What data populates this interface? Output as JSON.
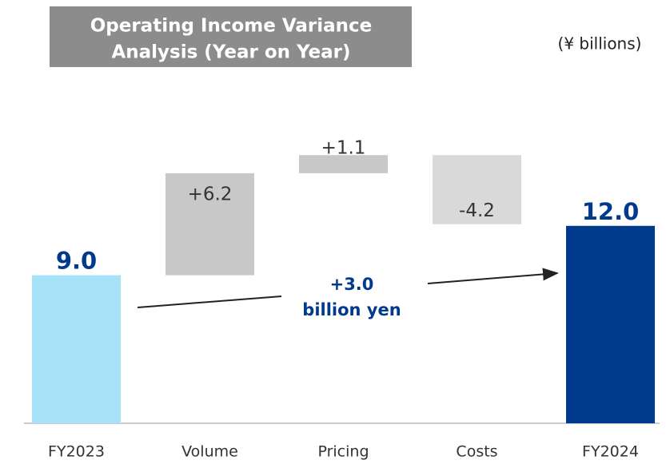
{
  "chart_data": {
    "type": "waterfall",
    "title": [
      "Operating Income Variance",
      "Analysis (Year on Year)"
    ],
    "unit_label": "(¥ billions)",
    "categories": [
      "FY2023",
      "Volume",
      "Pricing",
      "Costs",
      "FY2024"
    ],
    "values": [
      9.0,
      6.2,
      1.1,
      -4.2,
      12.0
    ],
    "value_labels": [
      "9.0",
      "+6.2",
      "+1.1",
      "-4.2",
      "12.0"
    ],
    "measure": [
      "absolute",
      "relative",
      "relative",
      "relative",
      "absolute"
    ],
    "colors": [
      "#a6e3f8",
      "#c8c8c8",
      "#c8c8c8",
      "#d9d9d9",
      "#003a8c"
    ],
    "annotation": [
      "+3.0",
      "billion yen"
    ]
  }
}
